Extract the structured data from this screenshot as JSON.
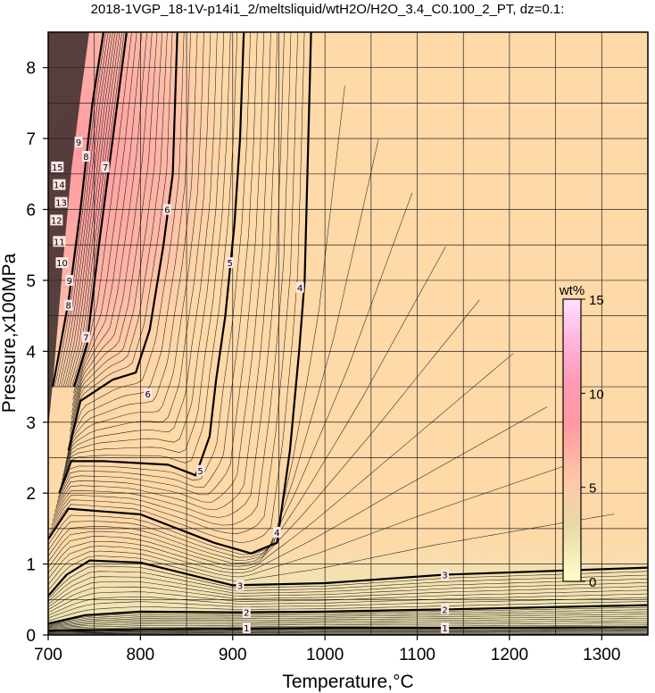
{
  "title": "2018-1VGP_18-1V-p14i1_2/meltsliquid/wtH2O/H2O_3.4_C0.100_2_PT, dz=0.1:",
  "chart_data": {
    "type": "heatmap",
    "title": "2018-1VGP_18-1V-p14i1_2/meltsliquid/wtH2O/H2O_3.4_C0.100_2_PT, dz=0.1:",
    "xlabel": "Temperature,°C",
    "ylabel": "Pressure,x100MPa",
    "xlim": [
      700,
      1350
    ],
    "ylim": [
      0,
      8.5
    ],
    "xticks": [
      700,
      800,
      900,
      1000,
      1100,
      1200,
      1300
    ],
    "yticks": [
      0,
      1,
      2,
      3,
      4,
      5,
      6,
      7,
      8
    ],
    "grid": true,
    "colorbar": {
      "label": "wt%",
      "ticks": [
        0,
        5,
        10,
        15
      ],
      "range": [
        0,
        15
      ],
      "colors": [
        "#ffffc8",
        "#f5e6b0",
        "#ffd9a8",
        "#ffb0a0",
        "#ff9aa0",
        "#ffa8c8",
        "#ffd0f0"
      ]
    },
    "contour_interval": 0.1,
    "major_contours": [
      {
        "level": 1,
        "points": [
          [
            700,
            0.06
          ],
          [
            800,
            0.08
          ],
          [
            900,
            0.09
          ],
          [
            1000,
            0.1
          ],
          [
            1130,
            0.1
          ],
          [
            1350,
            0.11
          ]
        ]
      },
      {
        "level": 2,
        "points": [
          [
            700,
            0.16
          ],
          [
            740,
            0.28
          ],
          [
            800,
            0.33
          ],
          [
            900,
            0.32
          ],
          [
            1000,
            0.33
          ],
          [
            1130,
            0.36
          ],
          [
            1350,
            0.42
          ]
        ]
      },
      {
        "level": 3,
        "points": [
          [
            700,
            0.55
          ],
          [
            720,
            0.85
          ],
          [
            745,
            1.05
          ],
          [
            800,
            1.02
          ],
          [
            900,
            0.7
          ],
          [
            1000,
            0.73
          ],
          [
            1130,
            0.85
          ],
          [
            1350,
            0.95
          ]
        ]
      },
      {
        "level": 4,
        "points": [
          [
            700,
            1.35
          ],
          [
            722,
            1.78
          ],
          [
            800,
            1.7
          ],
          [
            880,
            1.3
          ],
          [
            920,
            1.15
          ],
          [
            948,
            1.3
          ],
          [
            962,
            2.6
          ],
          [
            972,
            4.0
          ],
          [
            978,
            5.0
          ],
          [
            985,
            8.5
          ]
        ]
      },
      {
        "level": 5,
        "points": [
          [
            712,
            2.0
          ],
          [
            725,
            2.45
          ],
          [
            760,
            2.45
          ],
          [
            830,
            2.4
          ],
          [
            860,
            2.25
          ],
          [
            875,
            2.8
          ],
          [
            882,
            3.6
          ],
          [
            892,
            4.5
          ],
          [
            902,
            5.8
          ],
          [
            908,
            7.0
          ],
          [
            912,
            8.5
          ]
        ]
      },
      {
        "level": 6,
        "points": [
          [
            722,
            2.6
          ],
          [
            735,
            3.3
          ],
          [
            770,
            3.6
          ],
          [
            795,
            3.7
          ],
          [
            810,
            4.3
          ],
          [
            825,
            5.5
          ],
          [
            835,
            6.5
          ],
          [
            840,
            8.5
          ]
        ]
      },
      {
        "level": 7,
        "points": [
          [
            728,
            3.5
          ],
          [
            742,
            4.1
          ],
          [
            755,
            5.5
          ],
          [
            770,
            7.0
          ],
          [
            785,
            8.5
          ]
        ]
      },
      {
        "level": 8,
        "points": [
          [
            705,
            3.5
          ],
          [
            722,
            4.7
          ],
          [
            735,
            6.0
          ],
          [
            748,
            7.5
          ],
          [
            760,
            8.5
          ]
        ]
      }
    ],
    "contour_labels": [
      {
        "text": "1",
        "x": 915,
        "y": 0.1
      },
      {
        "text": "1",
        "x": 1130,
        "y": 0.1
      },
      {
        "text": "2",
        "x": 915,
        "y": 0.32
      },
      {
        "text": "2",
        "x": 1130,
        "y": 0.36
      },
      {
        "text": "3",
        "x": 908,
        "y": 0.7
      },
      {
        "text": "3",
        "x": 1130,
        "y": 0.85
      },
      {
        "text": "4",
        "x": 948,
        "y": 1.45
      },
      {
        "text": "4",
        "x": 973,
        "y": 4.9
      },
      {
        "text": "5",
        "x": 865,
        "y": 2.32
      },
      {
        "text": "5",
        "x": 897,
        "y": 5.25
      },
      {
        "text": "6",
        "x": 808,
        "y": 3.4
      },
      {
        "text": "6",
        "x": 829,
        "y": 6.0
      },
      {
        "text": "7",
        "x": 741,
        "y": 4.2
      },
      {
        "text": "7",
        "x": 762,
        "y": 6.6
      },
      {
        "text": "8",
        "x": 722,
        "y": 4.65
      },
      {
        "text": "8",
        "x": 741,
        "y": 6.75
      },
      {
        "text": "9",
        "x": 723,
        "y": 5.0
      },
      {
        "text": "9",
        "x": 733,
        "y": 6.95
      },
      {
        "text": "10",
        "x": 715,
        "y": 5.25
      },
      {
        "text": "11",
        "x": 712,
        "y": 5.55
      },
      {
        "text": "12",
        "x": 709,
        "y": 5.85
      },
      {
        "text": "13",
        "x": 714,
        "y": 6.1
      },
      {
        "text": "14",
        "x": 712,
        "y": 6.35
      },
      {
        "text": "15",
        "x": 710,
        "y": 6.6
      }
    ]
  }
}
